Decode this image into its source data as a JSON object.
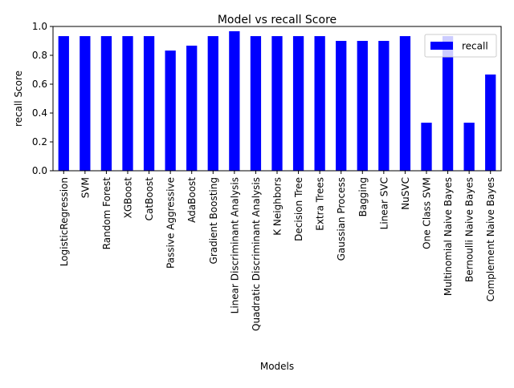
{
  "chart_data": {
    "type": "bar",
    "title": "Model vs recall Score",
    "xlabel": "Models",
    "ylabel": "recall Score",
    "ylim": [
      0,
      1.0
    ],
    "yticks": [
      0.0,
      0.2,
      0.4,
      0.6,
      0.8,
      1.0
    ],
    "ytick_labels": [
      "0.0",
      "0.2",
      "0.4",
      "0.6",
      "0.8",
      "1.0"
    ],
    "grid": false,
    "legend_position": "top-right",
    "bar_color": "#0000ff",
    "categories": [
      "LogisticRegression",
      "SVM",
      "Random Forest",
      "XGBoost",
      "CatBoost",
      "Passive Aggressive",
      "AdaBoost",
      "Gradient Boosting",
      "Linear Discriminant Analysis",
      "Quadratic Discriminant Analysis",
      "K Neighbors",
      "Decision Tree",
      "Extra Trees",
      "Gaussian Process",
      "Bagging",
      "Linear SVC",
      "NuSVC",
      "One Class SVM",
      "Multinomial Naive Bayes",
      "Bernoulli Naive Bayes",
      "Complement Naive Bayes"
    ],
    "series": [
      {
        "name": "recall",
        "values": [
          0.933,
          0.933,
          0.933,
          0.933,
          0.933,
          0.833,
          0.867,
          0.933,
          0.967,
          0.933,
          0.933,
          0.933,
          0.933,
          0.9,
          0.9,
          0.9,
          0.933,
          0.333,
          0.933,
          0.333,
          0.667
        ]
      }
    ]
  }
}
